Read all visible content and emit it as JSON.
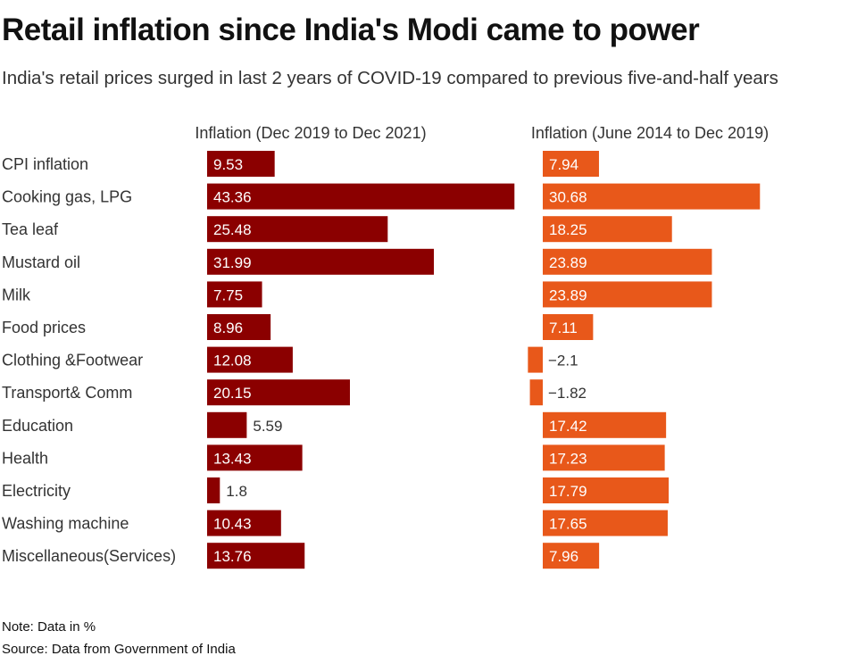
{
  "title": "Retail inflation since India's Modi came to power",
  "subtitle": "India's retail prices surged in last 2 years of COVID-19 compared to previous five-and-half years",
  "note": "Note: Data in %",
  "source": "Source: Data from Government of India",
  "colors": {
    "series_recent": "#8b0000",
    "series_prior": "#e8581a"
  },
  "chart_data": {
    "type": "bar",
    "orientation": "horizontal",
    "categories": [
      "CPI inflation",
      "Cooking gas, LPG",
      "Tea leaf",
      "Mustard oil",
      "Milk",
      "Food prices",
      "Clothing &Footwear",
      "Transport& Comm",
      "Education",
      "Health",
      "Electricity",
      "Washing machine",
      "Miscellaneous(Services)"
    ],
    "series": [
      {
        "name": "Inflation (Dec 2019 to Dec 2021)",
        "values": [
          9.53,
          43.36,
          25.48,
          31.99,
          7.75,
          8.96,
          12.08,
          20.15,
          5.59,
          13.43,
          1.8,
          10.43,
          13.76
        ],
        "labels": [
          "9.53",
          "43.36",
          "25.48",
          "31.99",
          "7.75",
          "8.96",
          "12.08",
          "20.15",
          "5.59",
          "13.43",
          "1.8",
          "10.43",
          "13.76"
        ]
      },
      {
        "name": "Inflation (June 2014 to Dec 2019)",
        "values": [
          7.94,
          30.68,
          18.25,
          23.89,
          23.89,
          7.11,
          -2.1,
          -1.82,
          17.42,
          17.23,
          17.79,
          17.65,
          7.96
        ],
        "labels": [
          "7.94",
          "30.68",
          "18.25",
          "23.89",
          "23.89",
          "7.11",
          "−2.1",
          "−1.82",
          "17.42",
          "17.23",
          "17.79",
          "17.65",
          "7.96"
        ]
      }
    ],
    "unit": "%"
  }
}
